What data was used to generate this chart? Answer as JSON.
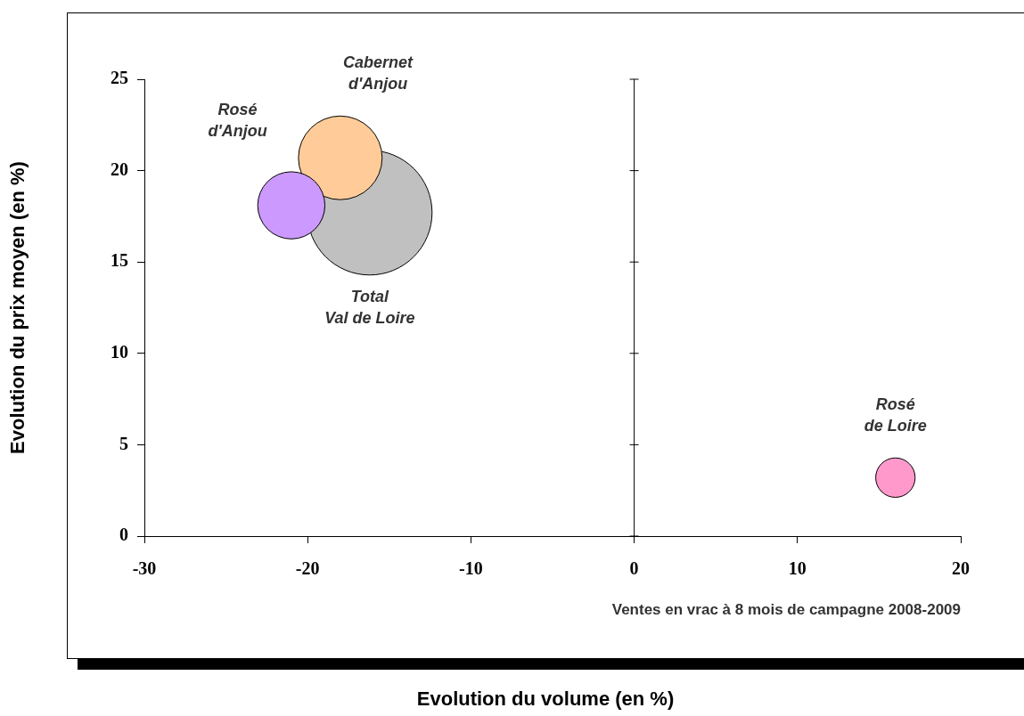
{
  "chart_data": {
    "type": "bubble",
    "ylabel": "Evolution du prix moyen (en %)",
    "annotations": [
      "Ventes en vrac à 8 mois de campagne 2008-2009",
      "Evolution du volume (en %)"
    ],
    "xlim": [
      -30,
      20
    ],
    "xticks": [
      -30,
      -20,
      -10,
      0,
      10,
      20
    ],
    "ylim": [
      0,
      25
    ],
    "yticks": [
      0,
      5,
      10,
      15,
      20,
      25
    ],
    "grid": false,
    "legend": false,
    "ref_lines": [
      {
        "axis": "x",
        "value": 0
      }
    ],
    "series": [
      {
        "name": "Total\nVal de Loire",
        "color": "#c0c0c0",
        "x": [
          -16.2
        ],
        "values": [
          17.7
        ],
        "sizes": [
          1
        ]
      },
      {
        "name": "Cabernet\nd'Anjou",
        "color": "#ffcc99",
        "x": [
          -18
        ],
        "values": [
          20.7
        ],
        "sizes": [
          0.45
        ]
      },
      {
        "name": "Rosé\nd'Anjou",
        "color": "#cc99ff",
        "x": [
          -21
        ],
        "values": [
          18.1
        ],
        "sizes": [
          0.29
        ]
      },
      {
        "name": "Rosé\nde Loire",
        "color": "#ff99cc",
        "x": [
          16
        ],
        "values": [
          3.2
        ],
        "sizes": [
          0.1
        ]
      }
    ]
  }
}
